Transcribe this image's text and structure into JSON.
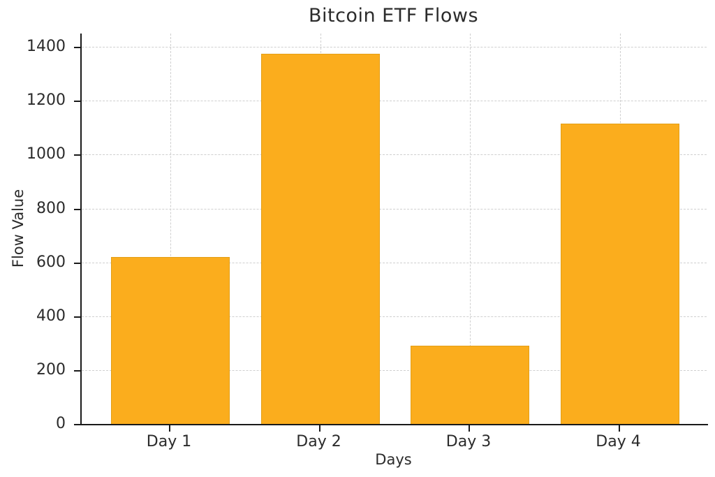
{
  "chart_data": {
    "type": "bar",
    "title": "Bitcoin ETF Flows",
    "xlabel": "Days",
    "ylabel": "Flow Value",
    "categories": [
      "Day 1",
      "Day 2",
      "Day 3",
      "Day 4"
    ],
    "values": [
      620,
      1375,
      290,
      1115
    ],
    "ylim": [
      0,
      1450
    ],
    "yticks": [
      0,
      200,
      400,
      600,
      800,
      1000,
      1200,
      1400
    ],
    "grid": "dashed, both axes",
    "legend_position": "none",
    "bar_color": "#fbad1d",
    "bar_edge_color": "#e39f16",
    "grid_color": "#cfcfcf",
    "axis_color": "#1a1a1a",
    "text_color": "#2b2b2b",
    "background_color": "#ffffff"
  }
}
